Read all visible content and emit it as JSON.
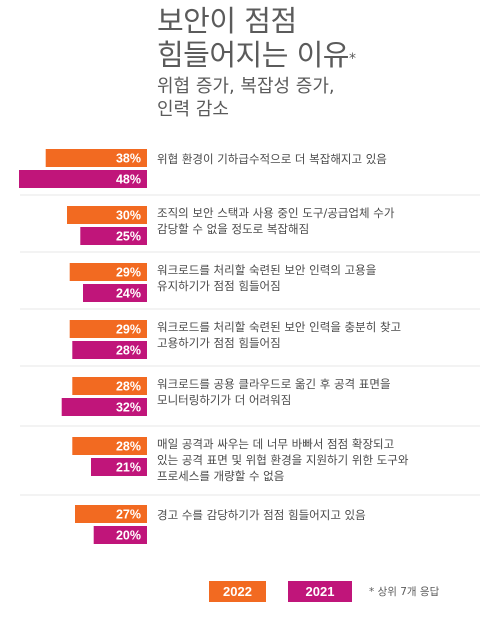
{
  "header": {
    "title_lines": [
      "보안이 점점",
      "힘들어지는 이유"
    ],
    "title_mark": "*",
    "subtitle_lines": [
      "위협 증가, 복잡성 증가,",
      "인력 감소"
    ]
  },
  "footnote": "* 상위 7개 응답",
  "colors": {
    "2022": "#f26a21",
    "2021": "#c0157a",
    "separator": "#cfcfcf"
  },
  "chart_data": {
    "type": "bar",
    "orientation": "horizontal",
    "unit": "%",
    "xlim": [
      0,
      50
    ],
    "legend_position": "bottom-right",
    "categories": [
      [
        "위협 환경이 기하급수적으로 더 복잡해지고 있음"
      ],
      [
        "조직의 보안 스택과 사용 중인 도구/공급업체 수가",
        "감당할 수 없을 정도로 복잡해짐"
      ],
      [
        "워크로드를 처리할 숙련된 보안 인력의 고용을",
        "유지하기가 점점 힘들어짐"
      ],
      [
        "워크로드를 처리할 숙련된 보안 인력을 충분히 찾고",
        "고용하기가 점점 힘들어짐"
      ],
      [
        "워크로드를 공용 클라우드로 옮긴 후 공격 표면을",
        "모니터링하기가 더 어려워짐"
      ],
      [
        "매일 공격과 싸우는 데 너무 바빠서 점점 확장되고",
        "있는 공격 표면 및 위협 환경을 지원하기 위한 도구와",
        "프로세스를 개량할 수 없음"
      ],
      [
        "경고 수를 감당하기가 점점 힘들어지고 있음"
      ]
    ],
    "series": [
      {
        "name": "2022",
        "values": [
          38,
          30,
          29,
          29,
          28,
          28,
          27
        ]
      },
      {
        "name": "2021",
        "values": [
          48,
          25,
          24,
          28,
          32,
          21,
          20
        ]
      }
    ]
  }
}
